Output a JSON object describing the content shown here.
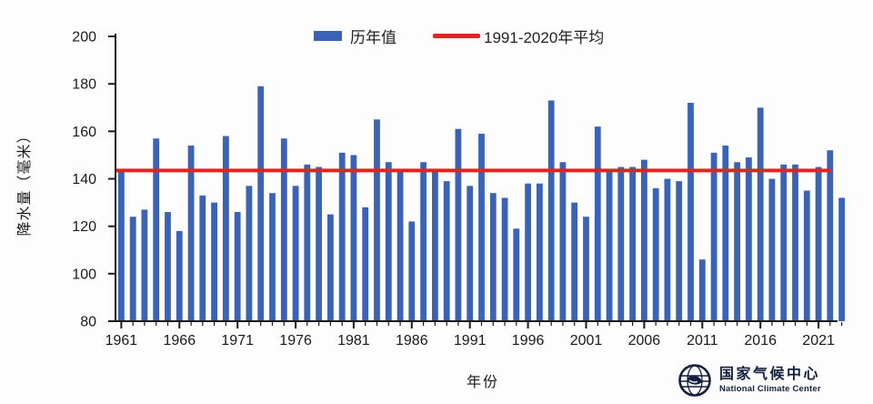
{
  "chart_data": {
    "type": "bar",
    "title": "",
    "xlabel": "年份",
    "ylabel": "降水量（毫米）",
    "ylim": [
      80,
      200
    ],
    "yticks": [
      80,
      100,
      120,
      140,
      160,
      180,
      200
    ],
    "xticks": [
      1961,
      1966,
      1971,
      1976,
      1981,
      1986,
      1991,
      1996,
      2001,
      2006,
      2011,
      2016,
      2021
    ],
    "series_label": "历年值",
    "reference_line": {
      "label": "1991-2020年平均",
      "value": 143.5
    },
    "x": [
      1961,
      1962,
      1963,
      1964,
      1965,
      1966,
      1967,
      1968,
      1969,
      1970,
      1971,
      1972,
      1973,
      1974,
      1975,
      1976,
      1977,
      1978,
      1979,
      1980,
      1981,
      1982,
      1983,
      1984,
      1985,
      1986,
      1987,
      1988,
      1989,
      1990,
      1991,
      1992,
      1993,
      1994,
      1995,
      1996,
      1997,
      1998,
      1999,
      2000,
      2001,
      2002,
      2003,
      2004,
      2005,
      2006,
      2007,
      2008,
      2009,
      2010,
      2011,
      2012,
      2013,
      2014,
      2015,
      2016,
      2017,
      2018,
      2019,
      2020,
      2021,
      2022,
      2023
    ],
    "values": [
      144,
      124,
      127,
      157,
      126,
      118,
      154,
      133,
      130,
      158,
      126,
      137,
      179,
      134,
      157,
      137,
      146,
      145,
      125,
      151,
      150,
      128,
      165,
      147,
      143,
      122,
      147,
      143,
      139,
      161,
      137,
      159,
      134,
      132,
      119,
      138,
      138,
      173,
      147,
      130,
      124,
      162,
      143,
      145,
      145,
      148,
      136,
      140,
      139,
      172,
      106,
      151,
      154,
      147,
      149,
      170,
      140,
      146,
      146,
      135,
      145,
      152,
      132
    ],
    "legend_position": "top-center",
    "grid": false,
    "colors": {
      "bar": "#3a63b8",
      "reference_line": "#e02421",
      "axis": "#1a1a1a"
    }
  },
  "logo": {
    "name_cn": "国家气候中心",
    "name_en": "National Climate Center"
  }
}
